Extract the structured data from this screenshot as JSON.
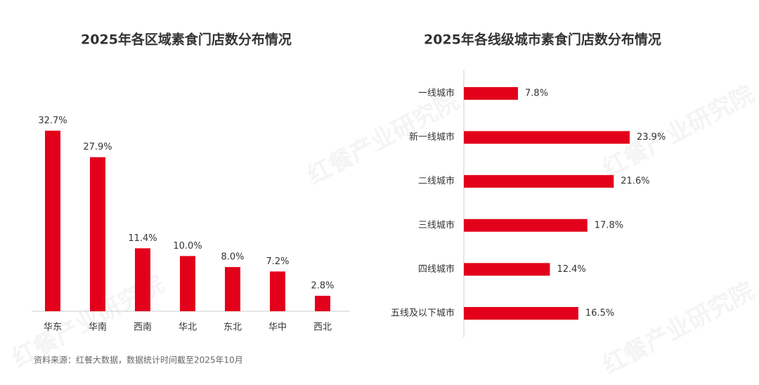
{
  "watermark": "红餐产业研究院",
  "source": "资料来源：红餐大数据，数据统计时间截至2025年10月",
  "chart_data": [
    {
      "type": "bar",
      "title": "2025年各区域素食门店数分布情况",
      "color": "#e3001b",
      "categories": [
        "华东",
        "华南",
        "西南",
        "华北",
        "东北",
        "华中",
        "西北"
      ],
      "values": [
        32.7,
        27.9,
        11.4,
        10.0,
        8.0,
        7.2,
        2.8
      ],
      "value_labels": [
        "32.7%",
        "27.9%",
        "11.4%",
        "10.0%",
        "8.0%",
        "7.2%",
        "2.8%"
      ]
    },
    {
      "type": "hbar",
      "title": "2025年各线级城市素食门店数分布情况",
      "color": "#e3001b",
      "categories": [
        "一线城市",
        "新一线城市",
        "二线城市",
        "三线城市",
        "四线城市",
        "五线及以下城市"
      ],
      "values": [
        7.8,
        23.9,
        21.6,
        17.8,
        12.4,
        16.5
      ],
      "value_labels": [
        "7.8%",
        "23.9%",
        "21.6%",
        "17.8%",
        "12.4%",
        "16.5%"
      ]
    }
  ]
}
